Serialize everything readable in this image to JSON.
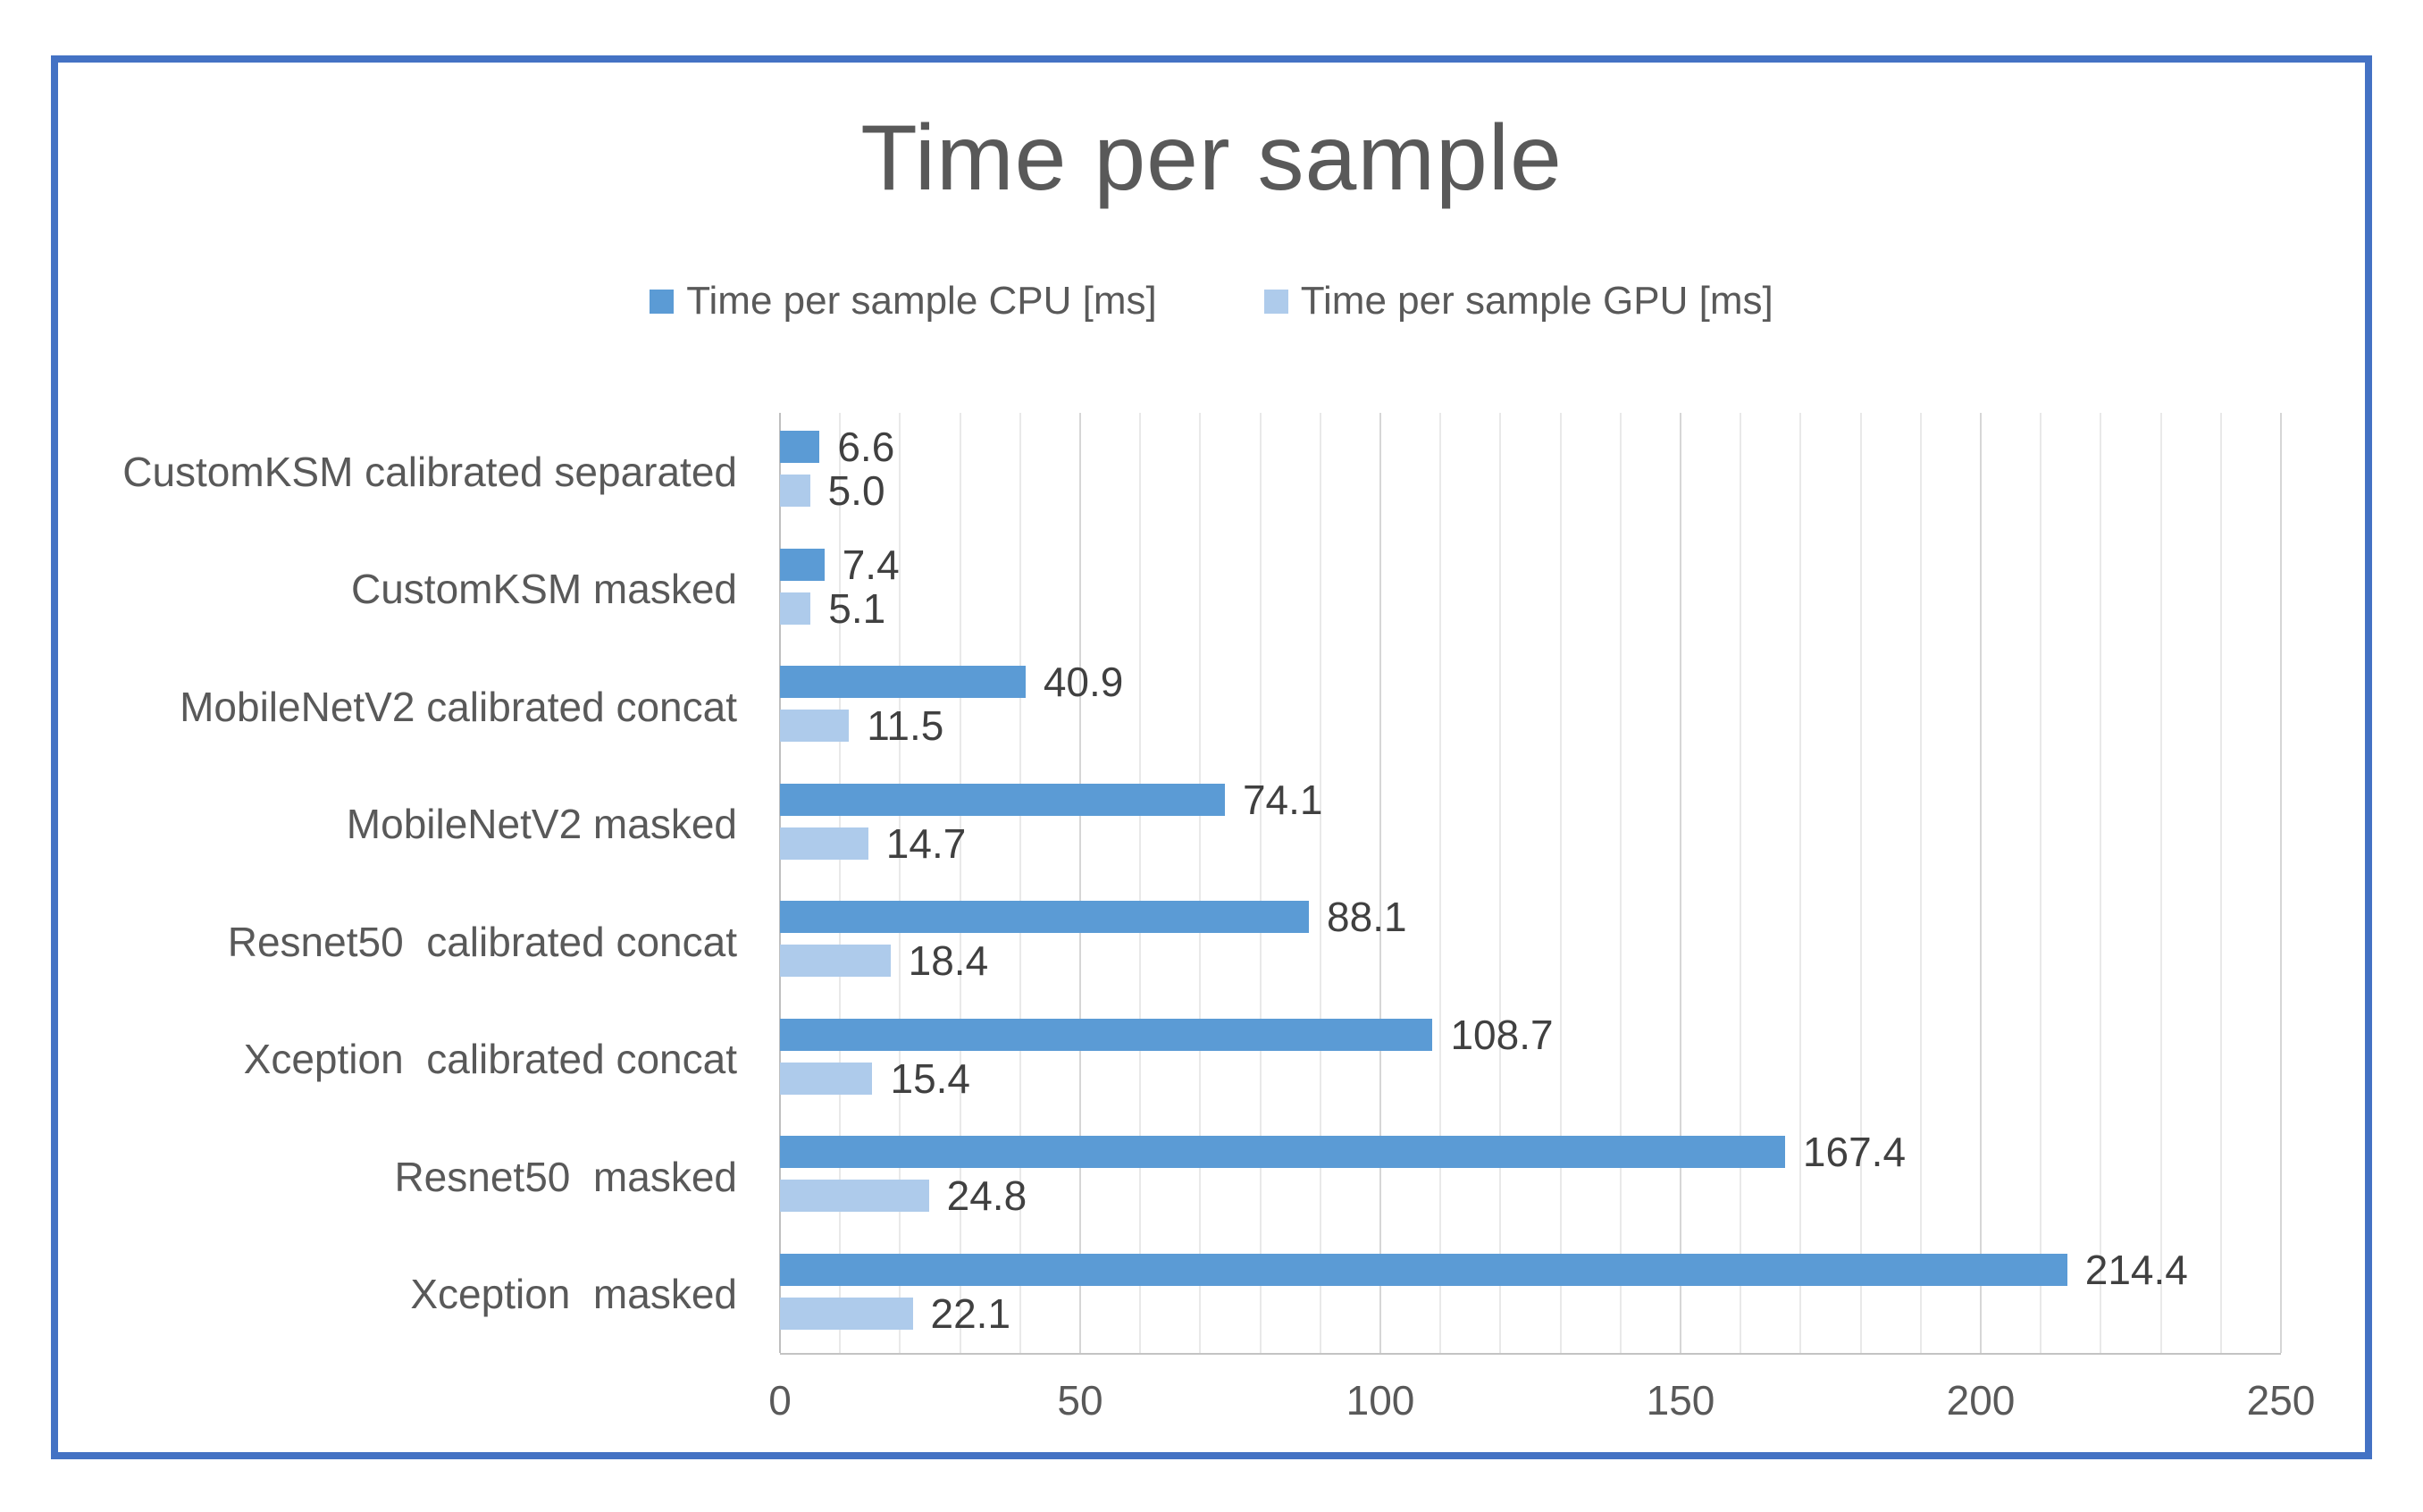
{
  "chart": {
    "frame_border_color": "#4472C4",
    "title_color": "#595959",
    "axis_text_color": "#595959",
    "value_label_color": "#404040",
    "grid_minor_color": "#E9E9E9",
    "grid_major_color": "#D6D6D6",
    "axis_zero_line_color": "#BFBFBF"
  },
  "chart_data": {
    "type": "bar",
    "orientation": "horizontal",
    "title": "Time per sample",
    "categories": [
      "CustomKSM calibrated separated",
      "CustomKSM masked",
      "MobileNetV2 calibrated concat",
      "MobileNetV2 masked",
      "Resnet50  calibrated concat",
      "Xception  calibrated concat",
      "Resnet50  masked",
      "Xception  masked"
    ],
    "series": [
      {
        "name": "Time per sample CPU [ms]",
        "color": "#5B9BD5",
        "values": [
          6.6,
          7.4,
          40.9,
          74.1,
          88.1,
          108.7,
          167.4,
          214.4
        ]
      },
      {
        "name": "Time per sample GPU [ms]",
        "color": "#AECBEB",
        "values": [
          5.0,
          5.1,
          11.5,
          14.7,
          18.4,
          15.4,
          24.8,
          22.1
        ]
      }
    ],
    "xlabel": "",
    "ylabel": "",
    "xlim": [
      0,
      250
    ],
    "x_ticks": [
      0,
      50,
      100,
      150,
      200,
      250
    ],
    "minor_grid_step": 10,
    "grid": "vertical",
    "legend_position": "top",
    "value_labels": true,
    "value_label_decimals": 1
  }
}
